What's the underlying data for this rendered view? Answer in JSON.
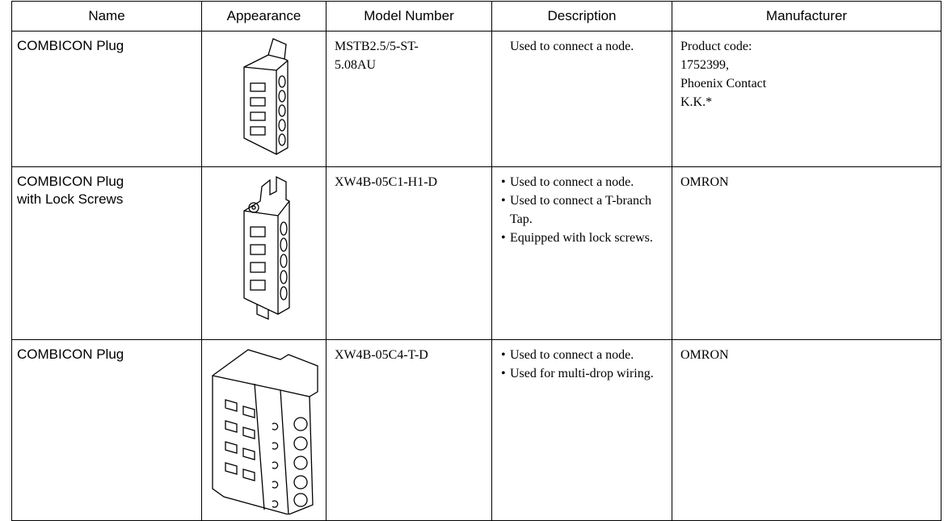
{
  "table": {
    "header": [
      "Name",
      "Appearance",
      "Model Number",
      "Description",
      "Manufacturer"
    ],
    "rows": [
      {
        "name": [
          "COMBICON Plug"
        ],
        "model": [
          "MSTB2.5/5-ST-",
          "5.08AU"
        ],
        "bulleted": false,
        "description": [
          "Used to connect a node."
        ],
        "manufacturer": [
          "Product code:",
          "1752399,",
          "Phoenix Contact",
          "K.K.*"
        ]
      },
      {
        "name": [
          "COMBICON Plug",
          "with Lock Screws"
        ],
        "model": [
          "XW4B-05C1-H1-D"
        ],
        "bulleted": true,
        "description": [
          "Used to connect a node.",
          "Used to connect a T-branch Tap.",
          "Equipped with lock screws."
        ],
        "manufacturer": [
          "OMRON"
        ]
      },
      {
        "name": [
          "COMBICON Plug"
        ],
        "model": [
          "XW4B-05C4-T-D"
        ],
        "bulleted": true,
        "description": [
          "Used to connect a node.",
          "Used for multi-drop wiring."
        ],
        "manufacturer": [
          "OMRON"
        ]
      }
    ]
  }
}
